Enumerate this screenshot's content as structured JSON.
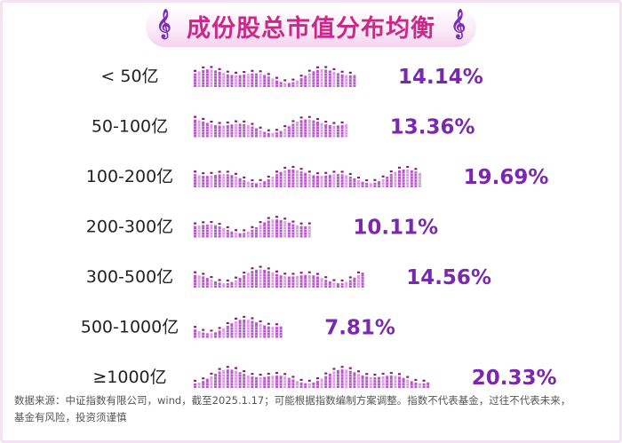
{
  "title": "成份股总市值分布均衡",
  "chart_data": {
    "type": "bar",
    "orientation": "horizontal",
    "title": "成份股总市值分布均衡",
    "categories": [
      "< 50亿",
      "50-100亿",
      "100-200亿",
      "200-300亿",
      "300-500亿",
      "500-1000亿",
      "≥1000亿"
    ],
    "values": [
      14.14,
      13.36,
      19.69,
      10.11,
      14.56,
      7.81,
      20.33
    ],
    "value_labels": [
      "14.14%",
      "13.36%",
      "19.69%",
      "10.11%",
      "14.56%",
      "7.81%",
      "20.33%"
    ],
    "unit": "%",
    "xlim": [
      0,
      20.33
    ],
    "grid": false,
    "legend": "none",
    "colors": {
      "bar_light": "#d99fe2",
      "bar_mid": "#b85acb",
      "bar_dark": "#8c1e72",
      "label": "#7a28ad",
      "category": "#222222"
    }
  },
  "footnote_line1": "数据来源：中证指数有限公司，wind，截至2025.1.17；可能根据指数编制方案调整。指数不代表基金，过往不代表未来，",
  "footnote_line2": "基金有风险，投资须谨慎",
  "icons": [
    "music-note-icon",
    "music-note-icon"
  ]
}
